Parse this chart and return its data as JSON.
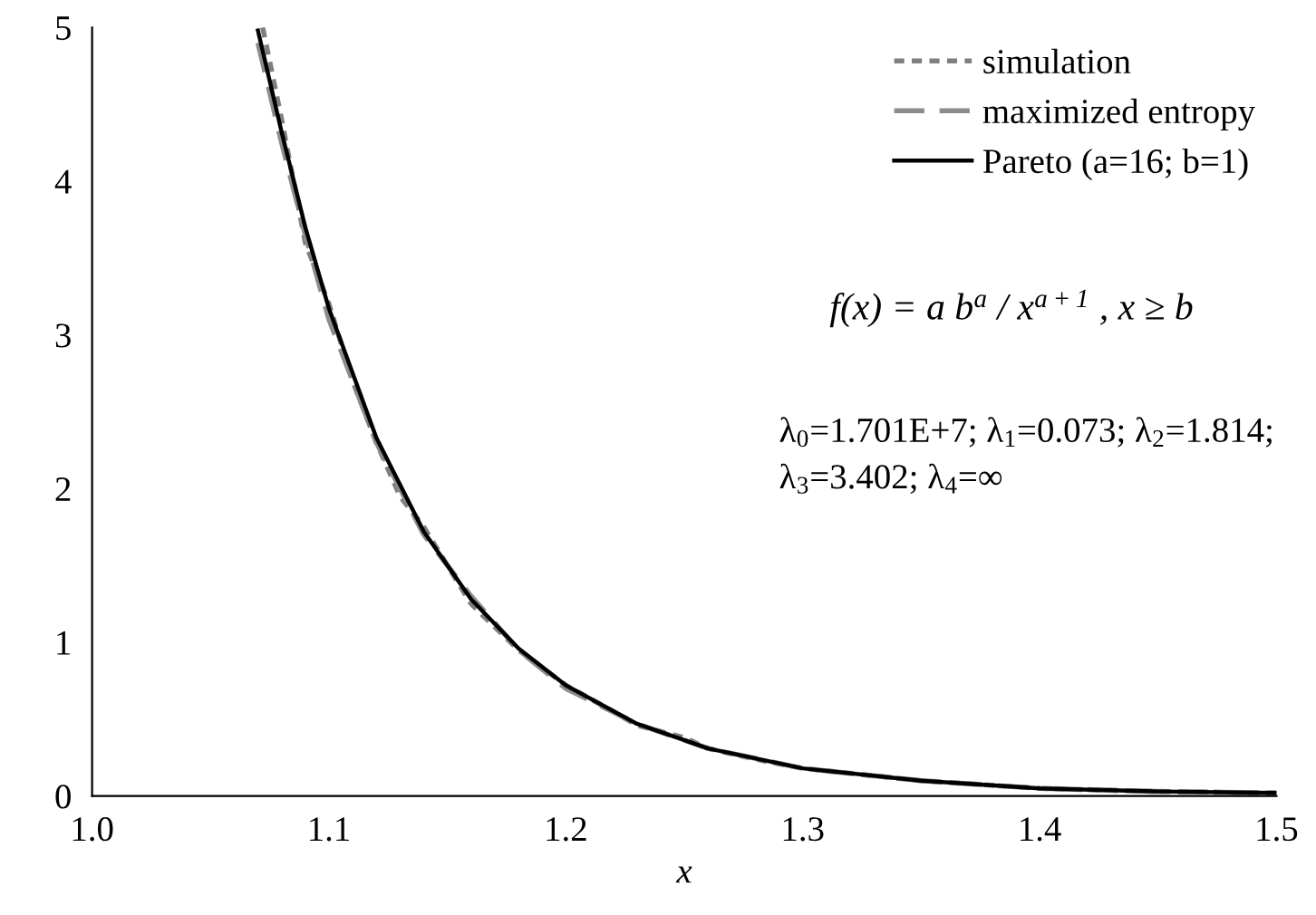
{
  "chart_data": {
    "type": "line",
    "xlabel": "x",
    "xlim": [
      1.0,
      1.5
    ],
    "xticks": [
      {
        "value": 1.0,
        "label": "1.0"
      },
      {
        "value": 1.1,
        "label": "1.1"
      },
      {
        "value": 1.2,
        "label": "1.2"
      },
      {
        "value": 1.3,
        "label": "1.3"
      },
      {
        "value": 1.4,
        "label": "1.4"
      },
      {
        "value": 1.5,
        "label": "1.5"
      }
    ],
    "ylim": [
      0,
      5
    ],
    "yticks": [
      0,
      1,
      2,
      3,
      4,
      5
    ],
    "grid": false,
    "legend": "top right",
    "series": [
      {
        "name": "simulation",
        "color": "#7f7f7f",
        "line_style": "dotted",
        "x": [
          1.072,
          1.08,
          1.09,
          1.1,
          1.11,
          1.12,
          1.13,
          1.14,
          1.16,
          1.18,
          1.2,
          1.22,
          1.23,
          1.25,
          1.26,
          1.28,
          1.3,
          1.35,
          1.4,
          1.45,
          1.5
        ],
        "values": [
          5.0,
          4.4,
          3.6,
          3.2,
          2.7,
          2.3,
          1.95,
          1.75,
          1.25,
          0.95,
          0.72,
          0.55,
          0.46,
          0.38,
          0.31,
          0.24,
          0.18,
          0.1,
          0.05,
          0.03,
          0.02
        ]
      },
      {
        "name": "maximized entropy",
        "color": "#8c8c8c",
        "line_style": "dashed",
        "x": [
          1.07,
          1.08,
          1.09,
          1.1,
          1.12,
          1.14,
          1.16,
          1.18,
          1.2,
          1.23,
          1.26,
          1.3,
          1.35,
          1.4,
          1.45,
          1.5
        ],
        "values": [
          4.9,
          4.25,
          3.65,
          3.1,
          2.3,
          1.7,
          1.3,
          0.95,
          0.7,
          0.47,
          0.31,
          0.18,
          0.1,
          0.05,
          0.03,
          0.02
        ]
      },
      {
        "name": "Pareto (a=16; b=1)",
        "color": "#000000",
        "line_style": "solid",
        "x": [
          1.07,
          1.08,
          1.09,
          1.1,
          1.12,
          1.14,
          1.16,
          1.18,
          1.2,
          1.23,
          1.26,
          1.3,
          1.35,
          1.4,
          1.45,
          1.5
        ],
        "values": [
          4.98,
          4.32,
          3.7,
          3.17,
          2.33,
          1.72,
          1.28,
          0.96,
          0.72,
          0.47,
          0.31,
          0.18,
          0.1,
          0.05,
          0.03,
          0.02
        ]
      }
    ],
    "annotations": [
      "f(x) = a b$^{a}$ / x$^{a+1}$ , x ≥ b",
      "λ$_{0}$=1.701E+7; λ$_{1}$=0.073; λ$_{2}$=1.814;\nλ$_{3}$=3.402; λ$_{4}$=∞"
    ]
  }
}
